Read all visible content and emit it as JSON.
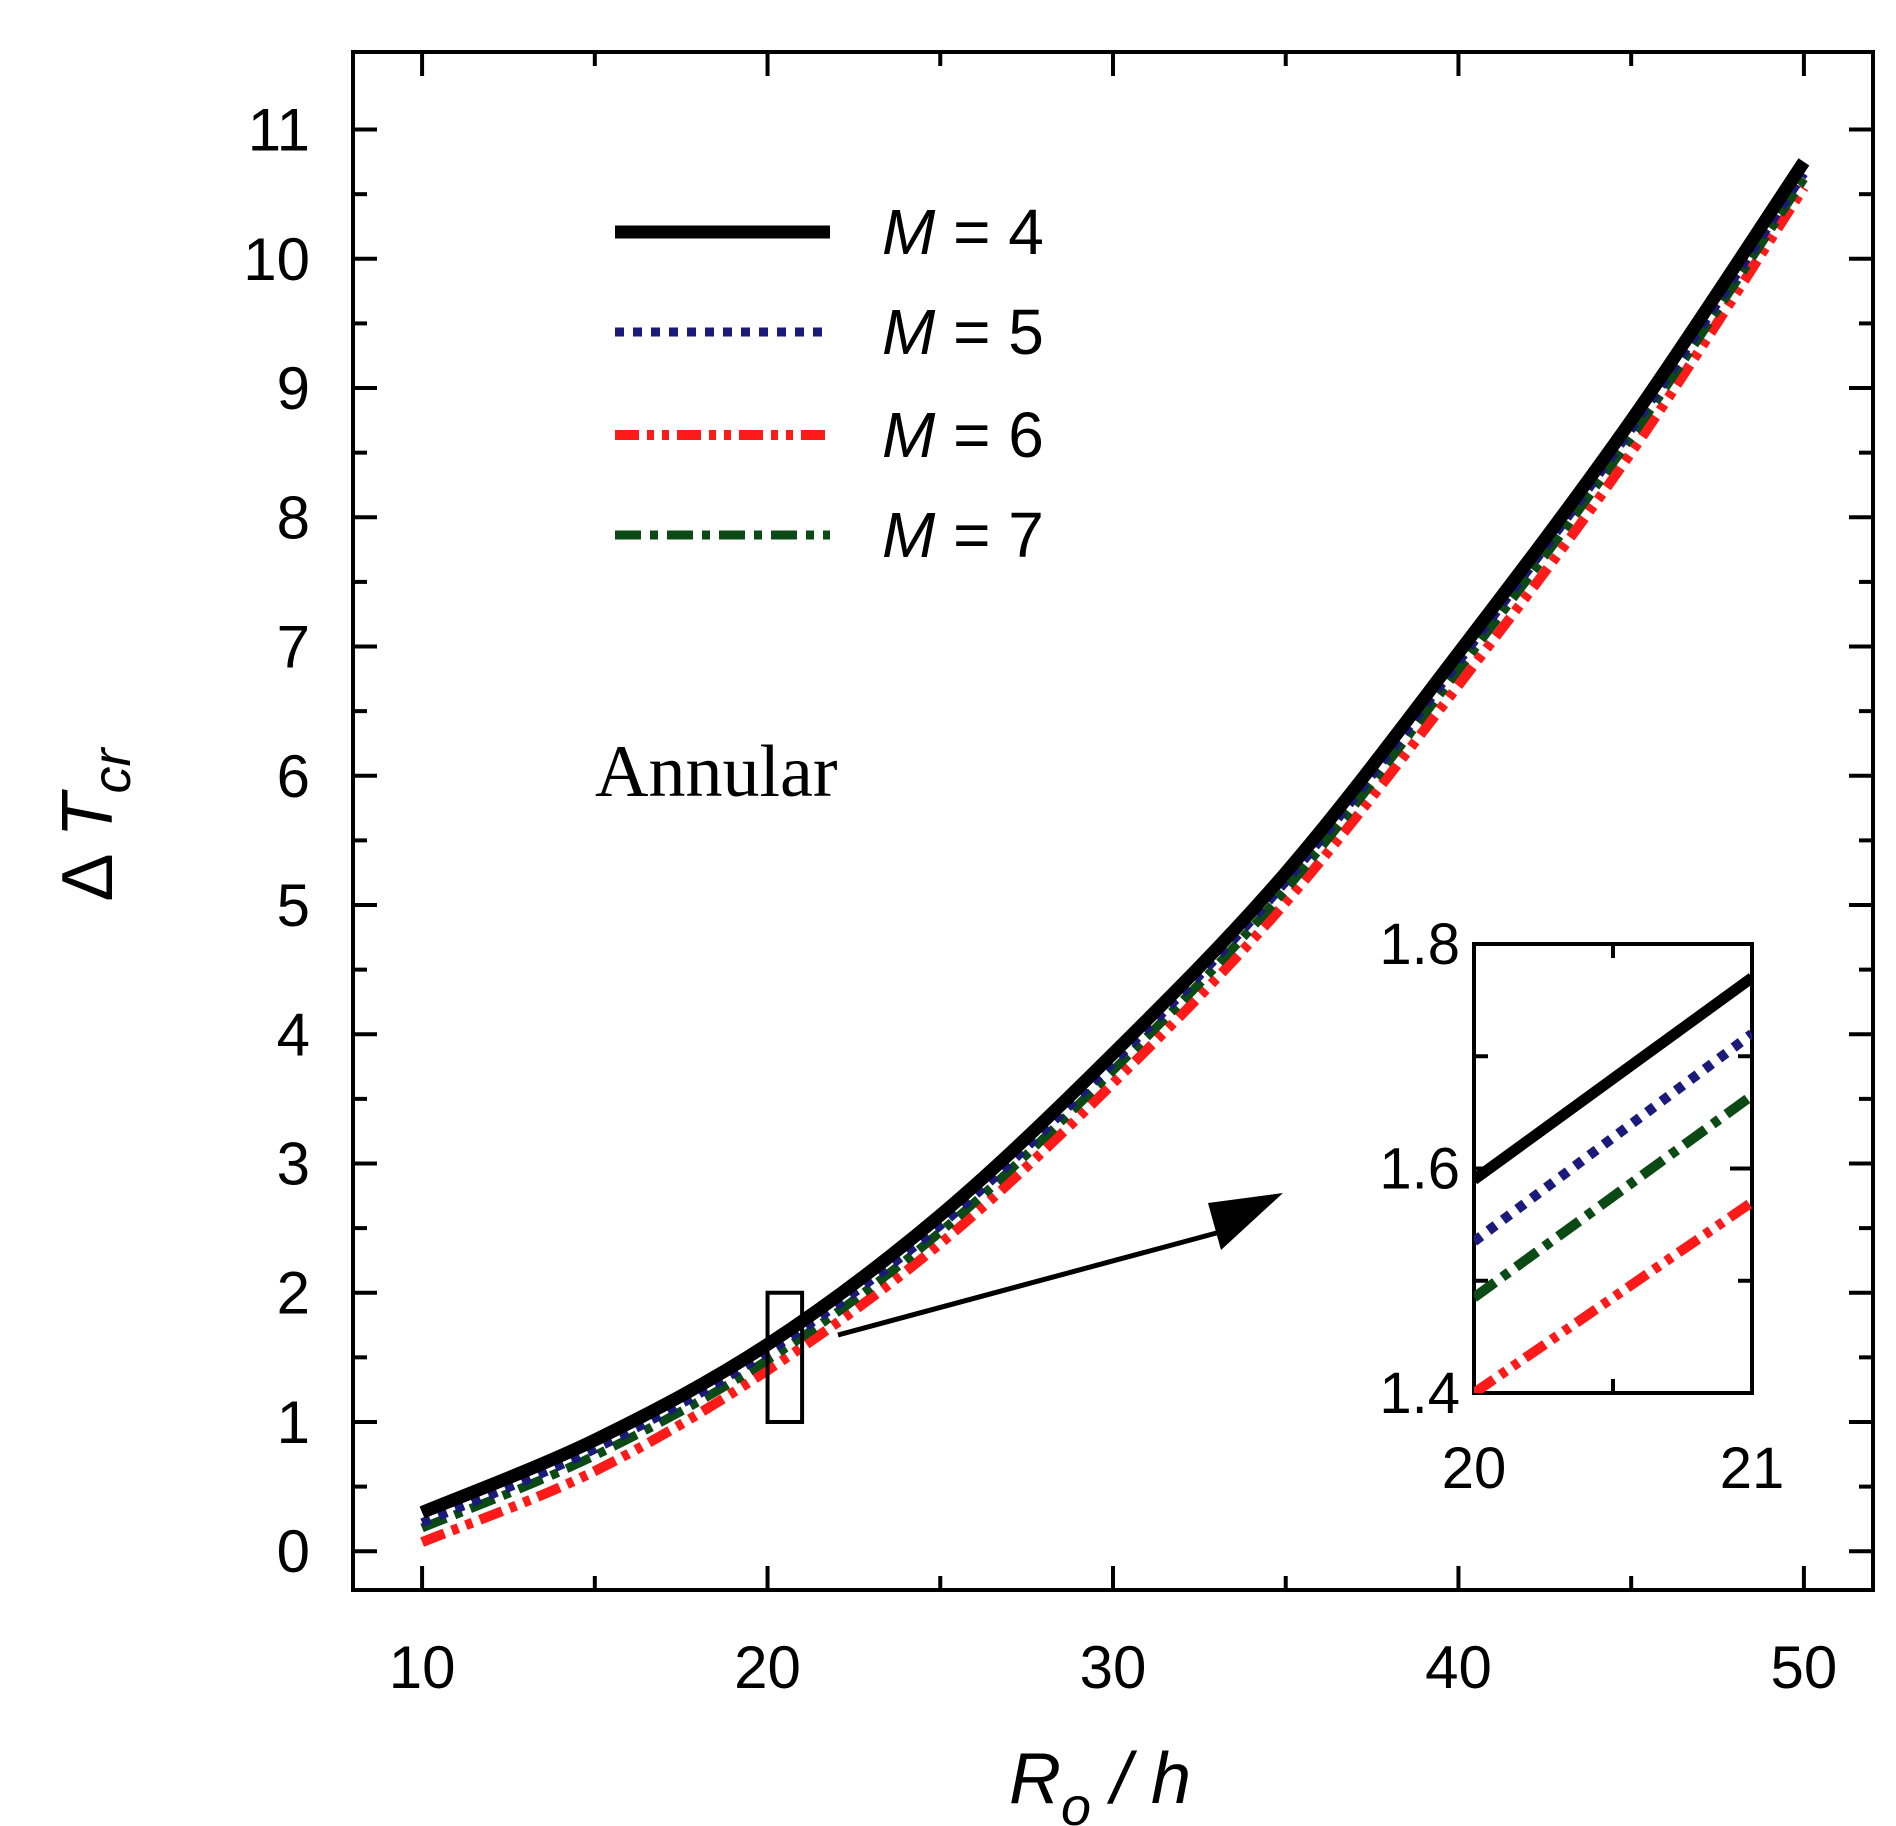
{
  "chart_data": {
    "type": "line",
    "xlabel": {
      "main": "R",
      "sub": "o",
      "rest": " / h"
    },
    "ylabel": {
      "prefix": "Δ",
      "main": "T",
      "sub": "cr"
    },
    "xlim": [
      8,
      52
    ],
    "ylim": [
      -0.3,
      11.6
    ],
    "xticks": [
      10,
      20,
      30,
      40,
      50
    ],
    "yticks": [
      0,
      1,
      2,
      3,
      4,
      5,
      6,
      7,
      8,
      9,
      10,
      11
    ],
    "grid": false,
    "legend_position": "top-left",
    "annotation": "Annular",
    "x": [
      10,
      15,
      20,
      25,
      30,
      35,
      40,
      45,
      50
    ],
    "series": [
      {
        "name": "M = 4",
        "legend_main": "M",
        "legend_rest": " = 4",
        "color": "#000000",
        "dash": "solid",
        "values": [
          0.3,
          0.86,
          1.6,
          2.6,
          3.85,
          5.25,
          6.95,
          8.75,
          10.75
        ]
      },
      {
        "name": "M = 5",
        "legend_main": "M",
        "legend_rest": " = 5",
        "color": "#1a1a7a",
        "dash": "dotted",
        "values": [
          0.22,
          0.79,
          1.54,
          2.52,
          3.78,
          5.18,
          6.88,
          8.68,
          10.66
        ]
      },
      {
        "name": "M = 6",
        "legend_main": "M",
        "legend_rest": " = 6",
        "color": "#ff1a1a",
        "dash": "dashdotdot",
        "values": [
          0.07,
          0.62,
          1.4,
          2.38,
          3.62,
          5.02,
          6.7,
          8.5,
          10.55
        ]
      },
      {
        "name": "M = 7",
        "legend_main": "M",
        "legend_rest": " = 7",
        "color": "#0b4a14",
        "dash": "dashdot",
        "values": [
          0.18,
          0.74,
          1.48,
          2.47,
          3.72,
          5.12,
          6.82,
          8.62,
          10.62
        ]
      }
    ],
    "zoom_box": {
      "x": [
        20,
        21
      ],
      "y": [
        1,
        2
      ]
    },
    "inset": {
      "xlim": [
        20,
        21
      ],
      "ylim": [
        1.4,
        1.8
      ],
      "xticks": [
        20,
        21
      ],
      "yticks": [
        1.4,
        1.6,
        1.8
      ],
      "series": [
        {
          "name": "M = 4",
          "values": [
            1.59,
            1.77
          ]
        },
        {
          "name": "M = 5",
          "values": [
            1.535,
            1.72
          ]
        },
        {
          "name": "M = 6",
          "values": [
            1.4,
            1.57
          ]
        },
        {
          "name": "M = 7",
          "values": [
            1.485,
            1.665
          ]
        }
      ]
    }
  }
}
